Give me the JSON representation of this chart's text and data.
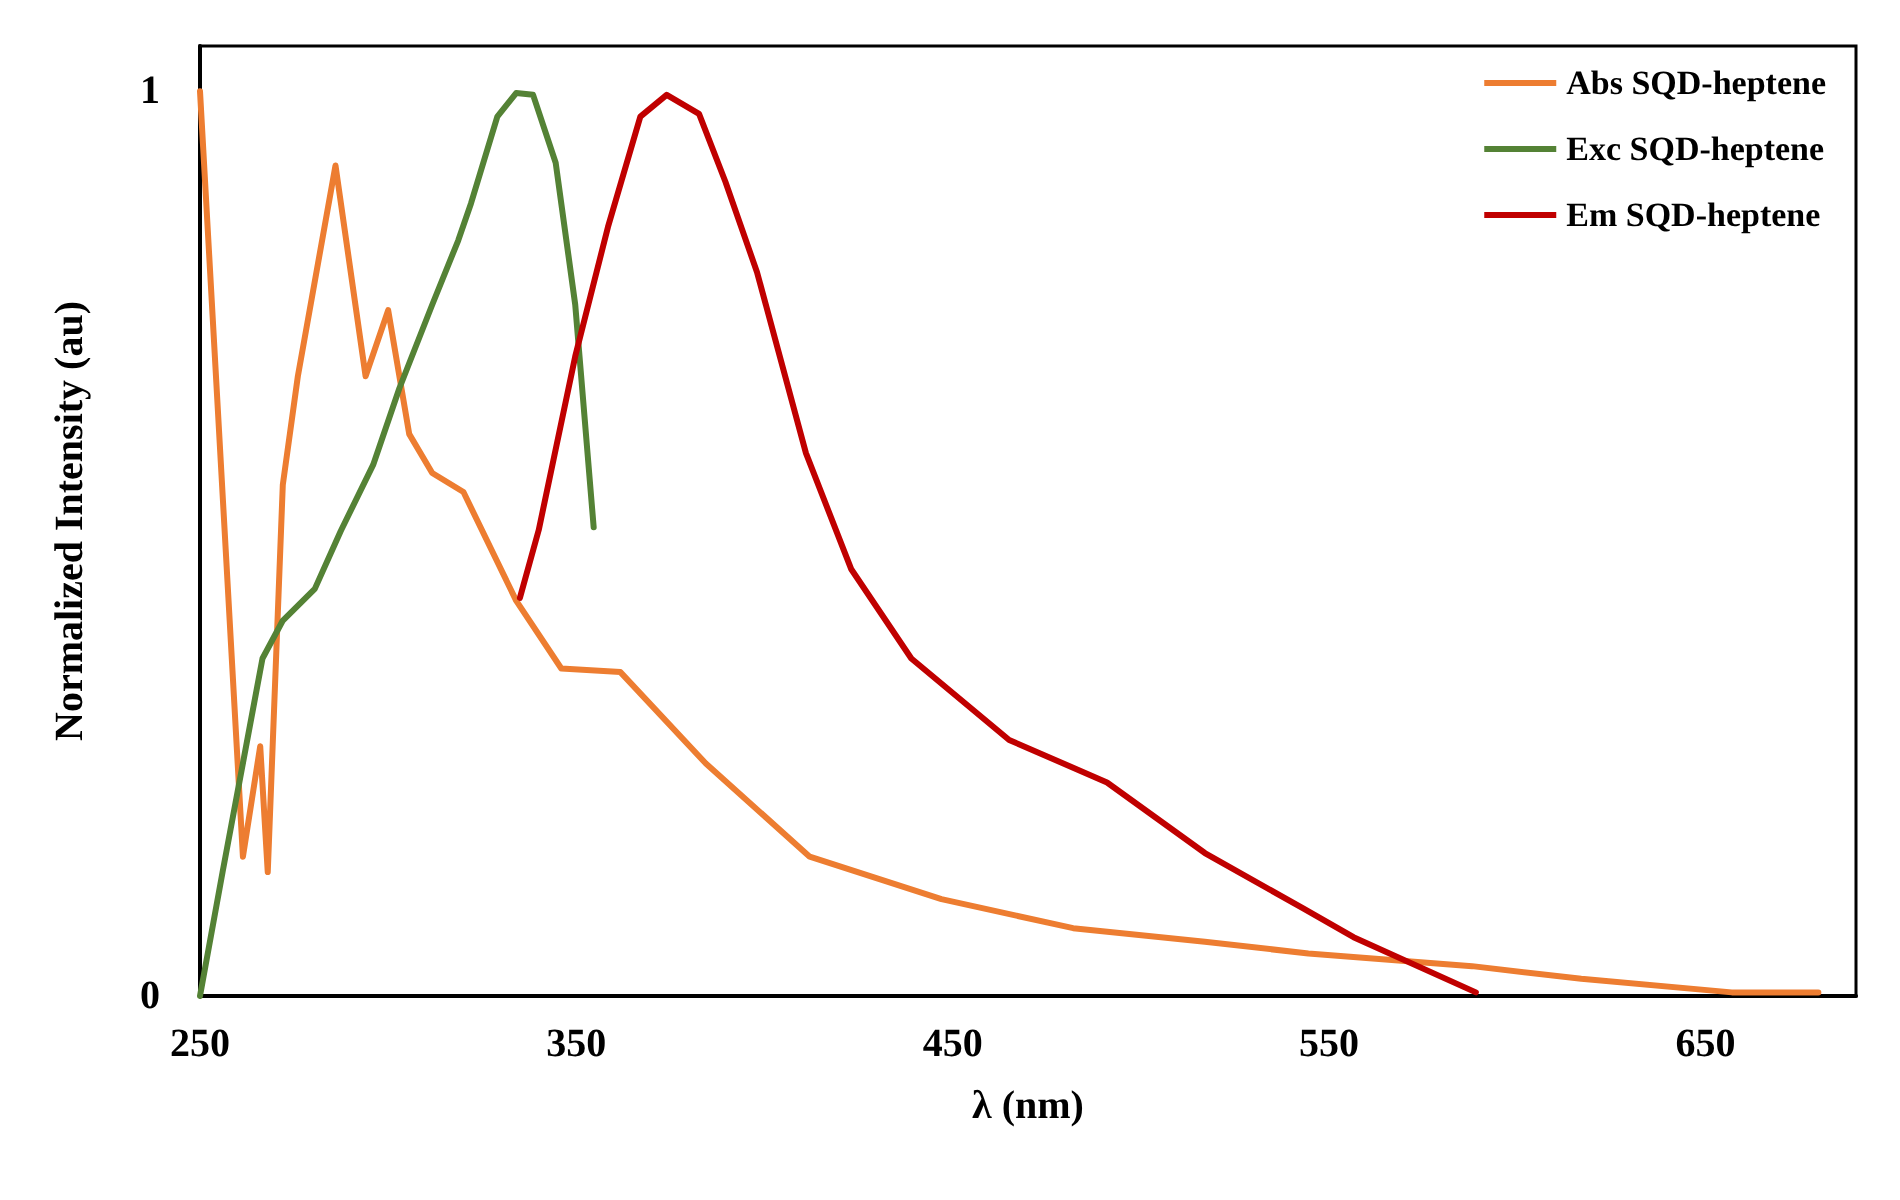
{
  "chart_data": {
    "type": "line",
    "xlabel": "λ (nm)",
    "ylabel": "Normalized Intensity (au)",
    "xlim": [
      250,
      690
    ],
    "xticks": [
      250,
      350,
      450,
      550,
      650
    ],
    "ylim": [
      0,
      1.05
    ],
    "yticks": [
      0,
      1
    ],
    "grid": false,
    "legend": "top right",
    "marker": "none",
    "line_style": "solid",
    "series": [
      {
        "name": "Abs SQD-heptene",
        "color": "#ed7d31",
        "x": [
          250,
          261.4,
          266,
          268,
          272,
          276,
          286,
          294,
          300,
          305.6,
          311.7,
          320,
          334,
          346,
          361.7,
          384.4,
          412,
          447,
          482,
          517,
          544.5,
          588,
          617,
          657,
          680
        ],
        "values": [
          1.0,
          0.154,
          0.276,
          0.137,
          0.565,
          0.685,
          0.918,
          0.685,
          0.758,
          0.621,
          0.578,
          0.557,
          0.437,
          0.362,
          0.358,
          0.257,
          0.154,
          0.107,
          0.075,
          0.06,
          0.047,
          0.033,
          0.019,
          0.004,
          0.004
        ]
      },
      {
        "name": "Exc SQD-heptene",
        "color": "#548235",
        "x": [
          250,
          256,
          266.6,
          272,
          280.5,
          287.4,
          296,
          303,
          311.7,
          318.6,
          322,
          329,
          334,
          338.5,
          344.5,
          349.7,
          354.6
        ],
        "values": [
          0,
          0.137,
          0.373,
          0.415,
          0.45,
          0.514,
          0.587,
          0.672,
          0.764,
          0.835,
          0.876,
          0.972,
          0.998,
          0.996,
          0.921,
          0.764,
          0.518
        ]
      },
      {
        "name": "Em SQD-heptene",
        "color": "#c00000",
        "x": [
          335,
          340,
          349.7,
          358.4,
          367,
          374,
          382.6,
          389.6,
          398,
          411,
          423,
          439,
          465,
          491,
          517,
          543,
          556.5,
          589
        ],
        "values": [
          0.44,
          0.515,
          0.707,
          0.85,
          0.972,
          0.996,
          0.975,
          0.9,
          0.8,
          0.6,
          0.472,
          0.373,
          0.283,
          0.236,
          0.158,
          0.097,
          0.065,
          0.004
        ]
      }
    ]
  }
}
